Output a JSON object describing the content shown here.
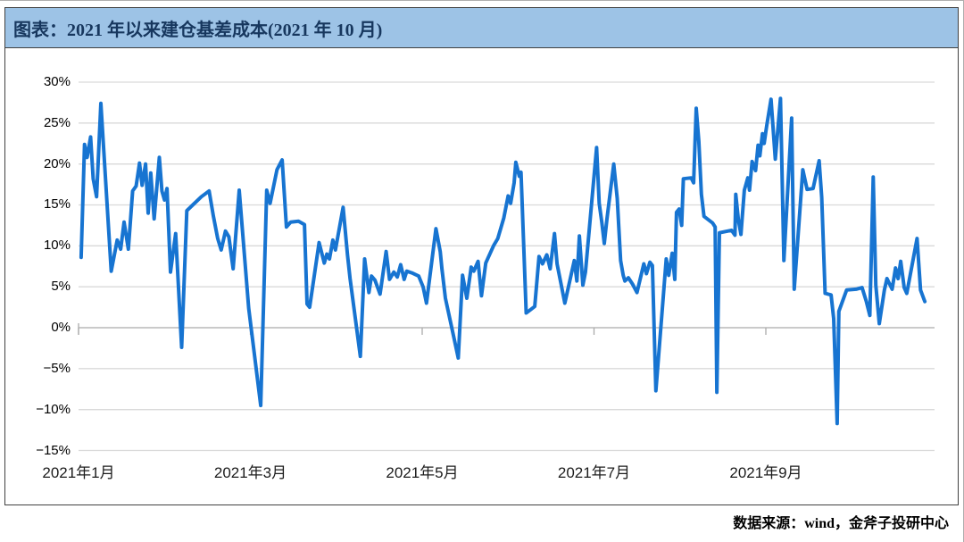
{
  "header": {
    "title": "图表：2021 年以来建仓基差成本(2021 年 10 月)",
    "bar_color": "#9DC3E6",
    "text_color": "#17375E"
  },
  "footer": {
    "source_label": "数据来源：wind，金斧子投研中心"
  },
  "chart_data": {
    "type": "line",
    "title": "2021 年以来建仓基差成本(2021 年 10 月)",
    "xlabel": "",
    "ylabel": "",
    "grid": true,
    "legend": "none",
    "line_color": "#1774D1",
    "gridline_color": "#D9D9D9",
    "zero_axis_color": "#ABABAB",
    "x_axis": {
      "unit": "month (2021)",
      "range": [
        1,
        10.95
      ],
      "tick_positions": [
        1,
        3,
        5,
        7,
        9
      ],
      "tick_labels": [
        "2021年1月",
        "2021年3月",
        "2021年5月",
        "2021年7月",
        "2021年9月"
      ]
    },
    "y_axis": {
      "unit": "%",
      "range": [
        -15,
        30
      ],
      "tick_values": [
        30,
        25,
        20,
        15,
        10,
        5,
        0,
        -5,
        -10,
        -15
      ],
      "tick_labels": [
        "30%",
        "25%",
        "20%",
        "15%",
        "10%",
        "5%",
        "0%",
        "−5%",
        "−10%",
        "−15%"
      ]
    },
    "series": [
      {
        "name": "建仓基差成本",
        "points": [
          [
            1.03,
            8.6
          ],
          [
            1.07,
            22.4
          ],
          [
            1.1,
            20.8
          ],
          [
            1.14,
            23.3
          ],
          [
            1.17,
            18.2
          ],
          [
            1.21,
            16.0
          ],
          [
            1.26,
            27.4
          ],
          [
            1.38,
            6.9
          ],
          [
            1.45,
            10.7
          ],
          [
            1.49,
            9.6
          ],
          [
            1.53,
            12.9
          ],
          [
            1.58,
            9.6
          ],
          [
            1.63,
            16.7
          ],
          [
            1.67,
            17.3
          ],
          [
            1.71,
            20.1
          ],
          [
            1.74,
            17.4
          ],
          [
            1.78,
            20.0
          ],
          [
            1.81,
            14.0
          ],
          [
            1.84,
            18.9
          ],
          [
            1.88,
            13.3
          ],
          [
            1.94,
            20.8
          ],
          [
            1.97,
            16.7
          ],
          [
            2.0,
            15.6
          ],
          [
            2.03,
            17.0
          ],
          [
            2.07,
            6.8
          ],
          [
            2.13,
            11.5
          ],
          [
            2.2,
            -2.4
          ],
          [
            2.26,
            14.3
          ],
          [
            2.33,
            15.0
          ],
          [
            2.43,
            16.0
          ],
          [
            2.52,
            16.7
          ],
          [
            2.57,
            13.6
          ],
          [
            2.62,
            10.9
          ],
          [
            2.66,
            9.5
          ],
          [
            2.71,
            11.8
          ],
          [
            2.75,
            11.1
          ],
          [
            2.8,
            7.2
          ],
          [
            2.87,
            16.8
          ],
          [
            2.98,
            2.4
          ],
          [
            3.12,
            -9.5
          ],
          [
            3.19,
            16.8
          ],
          [
            3.23,
            15.2
          ],
          [
            3.31,
            19.3
          ],
          [
            3.37,
            20.5
          ],
          [
            3.42,
            12.3
          ],
          [
            3.47,
            12.9
          ],
          [
            3.56,
            13.0
          ],
          [
            3.63,
            12.6
          ],
          [
            3.66,
            2.9
          ],
          [
            3.69,
            2.5
          ],
          [
            3.8,
            10.4
          ],
          [
            3.86,
            7.9
          ],
          [
            3.89,
            9.0
          ],
          [
            3.92,
            8.4
          ],
          [
            3.96,
            10.7
          ],
          [
            3.99,
            9.5
          ],
          [
            4.08,
            14.7
          ],
          [
            4.13,
            8.9
          ],
          [
            4.16,
            6.0
          ],
          [
            4.28,
            -3.5
          ],
          [
            4.33,
            8.4
          ],
          [
            4.38,
            4.3
          ],
          [
            4.41,
            6.3
          ],
          [
            4.45,
            5.8
          ],
          [
            4.51,
            4.1
          ],
          [
            4.58,
            9.3
          ],
          [
            4.62,
            5.9
          ],
          [
            4.67,
            6.8
          ],
          [
            4.71,
            6.2
          ],
          [
            4.75,
            7.7
          ],
          [
            4.79,
            5.9
          ],
          [
            4.82,
            6.9
          ],
          [
            4.88,
            6.7
          ],
          [
            4.96,
            6.3
          ],
          [
            5.01,
            5.0
          ],
          [
            5.05,
            3.0
          ],
          [
            5.16,
            12.1
          ],
          [
            5.21,
            9.3
          ],
          [
            5.23,
            7.2
          ],
          [
            5.27,
            3.6
          ],
          [
            5.36,
            -0.8
          ],
          [
            5.42,
            -3.7
          ],
          [
            5.47,
            6.4
          ],
          [
            5.52,
            3.6
          ],
          [
            5.57,
            7.4
          ],
          [
            5.6,
            6.9
          ],
          [
            5.65,
            8.1
          ],
          [
            5.69,
            3.9
          ],
          [
            5.74,
            7.9
          ],
          [
            5.83,
            10.0
          ],
          [
            5.88,
            10.9
          ],
          [
            5.95,
            13.4
          ],
          [
            6.0,
            16.1
          ],
          [
            6.03,
            15.2
          ],
          [
            6.07,
            17.7
          ],
          [
            6.09,
            20.2
          ],
          [
            6.13,
            18.5
          ],
          [
            6.15,
            19.0
          ],
          [
            6.21,
            1.8
          ],
          [
            6.25,
            2.1
          ],
          [
            6.31,
            2.6
          ],
          [
            6.36,
            8.7
          ],
          [
            6.4,
            7.8
          ],
          [
            6.45,
            8.9
          ],
          [
            6.49,
            7.2
          ],
          [
            6.54,
            11.5
          ],
          [
            6.57,
            7.8
          ],
          [
            6.66,
            3.0
          ],
          [
            6.77,
            8.2
          ],
          [
            6.8,
            5.7
          ],
          [
            6.83,
            11.2
          ],
          [
            6.87,
            5.2
          ],
          [
            6.9,
            6.8
          ],
          [
            7.03,
            22.0
          ],
          [
            7.06,
            15.2
          ],
          [
            7.09,
            12.9
          ],
          [
            7.12,
            10.3
          ],
          [
            7.15,
            13.2
          ],
          [
            7.23,
            20.0
          ],
          [
            7.27,
            15.8
          ],
          [
            7.31,
            8.2
          ],
          [
            7.34,
            6.4
          ],
          [
            7.36,
            5.7
          ],
          [
            7.4,
            6.1
          ],
          [
            7.45,
            5.3
          ],
          [
            7.5,
            4.3
          ],
          [
            7.58,
            7.8
          ],
          [
            7.61,
            6.6
          ],
          [
            7.65,
            8.0
          ],
          [
            7.68,
            7.6
          ],
          [
            7.72,
            -7.7
          ],
          [
            7.84,
            8.4
          ],
          [
            7.87,
            6.4
          ],
          [
            7.91,
            9.1
          ],
          [
            7.94,
            5.9
          ],
          [
            7.96,
            14.1
          ],
          [
            7.99,
            14.5
          ],
          [
            8.02,
            12.5
          ],
          [
            8.04,
            18.2
          ],
          [
            8.13,
            18.3
          ],
          [
            8.16,
            17.7
          ],
          [
            8.19,
            26.8
          ],
          [
            8.22,
            22.8
          ],
          [
            8.25,
            16.3
          ],
          [
            8.28,
            13.6
          ],
          [
            8.38,
            12.8
          ],
          [
            8.41,
            12.3
          ],
          [
            8.43,
            -7.9
          ],
          [
            8.46,
            11.6
          ],
          [
            8.6,
            11.9
          ],
          [
            8.64,
            11.3
          ],
          [
            8.65,
            16.3
          ],
          [
            8.68,
            13.2
          ],
          [
            8.71,
            11.4
          ],
          [
            8.75,
            16.8
          ],
          [
            8.79,
            18.3
          ],
          [
            8.81,
            16.8
          ],
          [
            8.84,
            20.3
          ],
          [
            8.88,
            19.2
          ],
          [
            8.91,
            22.3
          ],
          [
            8.93,
            21.0
          ],
          [
            8.96,
            23.7
          ],
          [
            8.98,
            22.5
          ],
          [
            9.01,
            24.7
          ],
          [
            9.06,
            27.9
          ],
          [
            9.11,
            20.6
          ],
          [
            9.17,
            28.0
          ],
          [
            9.21,
            8.2
          ],
          [
            9.3,
            25.6
          ],
          [
            9.33,
            4.7
          ],
          [
            9.43,
            19.3
          ],
          [
            9.48,
            16.9
          ],
          [
            9.55,
            17.0
          ],
          [
            9.62,
            20.4
          ],
          [
            9.65,
            15.9
          ],
          [
            9.69,
            4.2
          ],
          [
            9.76,
            4.0
          ],
          [
            9.79,
            1.1
          ],
          [
            9.83,
            -11.7
          ],
          [
            9.85,
            2.0
          ],
          [
            9.94,
            4.6
          ],
          [
            10.05,
            4.7
          ],
          [
            10.12,
            4.9
          ],
          [
            10.17,
            3.2
          ],
          [
            10.21,
            1.5
          ],
          [
            10.25,
            18.4
          ],
          [
            10.28,
            5.2
          ],
          [
            10.32,
            0.5
          ],
          [
            10.38,
            4.6
          ],
          [
            10.41,
            6.0
          ],
          [
            10.47,
            4.7
          ],
          [
            10.51,
            7.3
          ],
          [
            10.54,
            6.0
          ],
          [
            10.57,
            8.1
          ],
          [
            10.61,
            4.9
          ],
          [
            10.64,
            4.2
          ],
          [
            10.76,
            10.9
          ],
          [
            10.8,
            4.6
          ],
          [
            10.85,
            3.2
          ]
        ]
      }
    ]
  }
}
